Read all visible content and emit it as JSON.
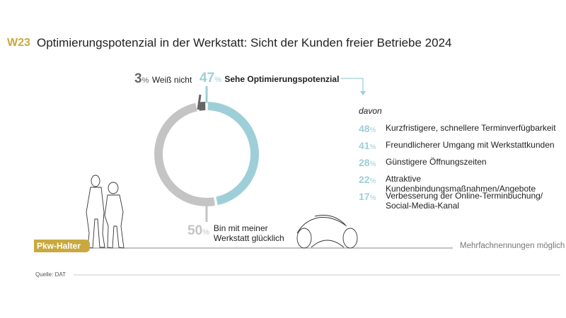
{
  "header": {
    "code": "W23",
    "title": "Optimierungspotenzial in der Werkstatt: Sicht der Kunden freier Betriebe 2024"
  },
  "chart_data": {
    "type": "pie",
    "title": "Optimierungspotenzial in der Werkstatt: Sicht der Kunden freier Betriebe 2024",
    "donut": true,
    "slices": [
      {
        "label": "Sehe Optimierungspotenzial",
        "value": 47,
        "color": "#9ecfd8"
      },
      {
        "label": "Bin mit meiner Werkstatt glücklich",
        "value": 50,
        "color": "#c4c4c4"
      },
      {
        "label": "Weiß nicht",
        "value": 3,
        "color": "#666666"
      }
    ],
    "breakdown": {
      "intro": "davon",
      "items": [
        {
          "value": 48,
          "label": "Kurzfristigere, schnellere Terminverfügbarkeit"
        },
        {
          "value": 41,
          "label": "Freundlicherer Umgang mit Werkstattkunden"
        },
        {
          "value": 28,
          "label": "Günstigere Öffnungszeiten"
        },
        {
          "value": 22,
          "label": "Attraktive Kundenbindungsmaßnahmen/Angebote"
        },
        {
          "value": 17,
          "label": "Verbesserung der Online-Terminbuchung/ Social-Media-Kanal"
        }
      ]
    }
  },
  "labels": {
    "pct_sign": "%",
    "weiss_value": "3",
    "weiss_label": "Weiß nicht",
    "sehe_value": "47",
    "sehe_label": "Sehe Optimierungspotenzial",
    "gluecklich_value": "50",
    "gluecklich_line1": "Bin mit meiner",
    "gluecklich_line2": "Werkstatt glücklich"
  },
  "footer": {
    "badge": "Pkw-Halter",
    "note": "Mehrfachnennungen möglich",
    "source": "Quelle: DAT"
  }
}
